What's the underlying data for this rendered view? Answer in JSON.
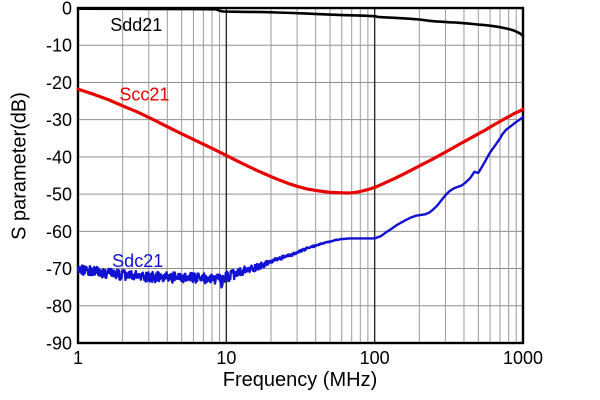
{
  "chart_data": {
    "type": "line",
    "title": "",
    "xlabel": "Frequency (MHz)",
    "ylabel": "S parameter(dB)",
    "x_scale": "log",
    "xlim": [
      1,
      1000
    ],
    "ylim": [
      -90,
      0
    ],
    "grid": true,
    "legend_position": "inline-annotations",
    "x_ticks": [
      {
        "value": 1,
        "label": "1"
      },
      {
        "value": 10,
        "label": "10"
      },
      {
        "value": 100,
        "label": "100"
      },
      {
        "value": 1000,
        "label": "1000"
      }
    ],
    "y_ticks": [
      {
        "value": 0,
        "label": "0"
      },
      {
        "value": -10,
        "label": "-10"
      },
      {
        "value": -20,
        "label": "-20"
      },
      {
        "value": -30,
        "label": "-30"
      },
      {
        "value": -40,
        "label": "-40"
      },
      {
        "value": -50,
        "label": "-50"
      },
      {
        "value": -60,
        "label": "-60"
      },
      {
        "value": -70,
        "label": "-70"
      },
      {
        "value": -80,
        "label": "-80"
      },
      {
        "value": -90,
        "label": "-90"
      }
    ],
    "colors": {
      "grid_minor": "#9a9a9a",
      "grid_major": "#2b2b2b",
      "grid_horizontal": "#8f8f8f",
      "border": "#000000",
      "background": "#ffffff"
    },
    "series": [
      {
        "name": "Sdd21",
        "color": "#000000",
        "stroke_width": 2.6,
        "points": [
          [
            1,
            -0.2
          ],
          [
            3,
            -0.25
          ],
          [
            6,
            -0.3
          ],
          [
            8.5,
            -0.35
          ],
          [
            9,
            -0.7
          ],
          [
            9.5,
            -0.95
          ],
          [
            11,
            -1.0
          ],
          [
            14,
            -1.05
          ],
          [
            18,
            -1.1
          ],
          [
            22,
            -1.2
          ],
          [
            28,
            -1.35
          ],
          [
            35,
            -1.5
          ],
          [
            45,
            -1.7
          ],
          [
            60,
            -1.9
          ],
          [
            80,
            -2.05
          ],
          [
            100,
            -2.2
          ],
          [
            105,
            -2.4
          ],
          [
            115,
            -2.5
          ],
          [
            130,
            -2.6
          ],
          [
            150,
            -2.75
          ],
          [
            175,
            -2.9
          ],
          [
            200,
            -3.1
          ],
          [
            230,
            -3.4
          ],
          [
            260,
            -3.6
          ],
          [
            290,
            -3.7
          ],
          [
            320,
            -3.85
          ],
          [
            350,
            -3.9
          ],
          [
            380,
            -4.0
          ],
          [
            420,
            -4.15
          ],
          [
            460,
            -4.3
          ],
          [
            500,
            -4.45
          ],
          [
            550,
            -4.6
          ],
          [
            600,
            -4.75
          ],
          [
            650,
            -4.95
          ],
          [
            700,
            -5.15
          ],
          [
            750,
            -5.4
          ],
          [
            800,
            -5.65
          ],
          [
            850,
            -5.95
          ],
          [
            900,
            -6.35
          ],
          [
            940,
            -6.7
          ],
          [
            970,
            -7.0
          ],
          [
            1000,
            -7.5
          ]
        ]
      },
      {
        "name": "Scc21",
        "color": "#e80000",
        "stroke_width": 3.2,
        "points": [
          [
            1,
            -21.8
          ],
          [
            1.3,
            -23.3
          ],
          [
            1.6,
            -24.6
          ],
          [
            2,
            -26.3
          ],
          [
            2.5,
            -27.9
          ],
          [
            3,
            -29.4
          ],
          [
            3.5,
            -30.7
          ],
          [
            4,
            -31.9
          ],
          [
            5,
            -33.8
          ],
          [
            6,
            -35.3
          ],
          [
            7,
            -36.6
          ],
          [
            8,
            -37.7
          ],
          [
            9,
            -38.7
          ],
          [
            10,
            -39.6
          ],
          [
            12,
            -41.2
          ],
          [
            14,
            -42.5
          ],
          [
            16,
            -43.6
          ],
          [
            18,
            -44.5
          ],
          [
            20,
            -45.3
          ],
          [
            23,
            -46.3
          ],
          [
            26,
            -47.1
          ],
          [
            30,
            -47.9
          ],
          [
            35,
            -48.6
          ],
          [
            40,
            -49.0
          ],
          [
            45,
            -49.3
          ],
          [
            50,
            -49.5
          ],
          [
            55,
            -49.6
          ],
          [
            60,
            -49.65
          ],
          [
            65,
            -49.7
          ],
          [
            70,
            -49.65
          ],
          [
            75,
            -49.5
          ],
          [
            80,
            -49.3
          ],
          [
            90,
            -48.8
          ],
          [
            100,
            -48.2
          ],
          [
            110,
            -47.5
          ],
          [
            120,
            -46.8
          ],
          [
            135,
            -45.9
          ],
          [
            150,
            -45.0
          ],
          [
            170,
            -43.9
          ],
          [
            190,
            -42.9
          ],
          [
            210,
            -42.0
          ],
          [
            240,
            -40.8
          ],
          [
            270,
            -39.7
          ],
          [
            300,
            -38.7
          ],
          [
            340,
            -37.5
          ],
          [
            380,
            -36.4
          ],
          [
            420,
            -35.5
          ],
          [
            460,
            -34.6
          ],
          [
            500,
            -33.8
          ],
          [
            550,
            -32.9
          ],
          [
            600,
            -32.0
          ],
          [
            650,
            -31.2
          ],
          [
            700,
            -30.5
          ],
          [
            750,
            -29.8
          ],
          [
            800,
            -29.2
          ],
          [
            850,
            -28.6
          ],
          [
            900,
            -28.1
          ],
          [
            950,
            -27.7
          ],
          [
            1000,
            -27.2
          ]
        ]
      },
      {
        "name": "Sdc21",
        "color": "#1111d2",
        "stroke_width": 2.4,
        "points": [
          [
            1,
            -70.0
          ],
          [
            1.5,
            -71.3
          ],
          [
            2,
            -71.8
          ],
          [
            3,
            -72.2
          ],
          [
            4,
            -72.4
          ],
          [
            5,
            -72.5
          ],
          [
            6,
            -72.6
          ],
          [
            7,
            -72.6
          ],
          [
            8,
            -72.8
          ],
          [
            9,
            -73.0
          ],
          [
            9.2,
            -73.2
          ],
          [
            9.3,
            -75.6
          ],
          [
            9.45,
            -73.0
          ],
          [
            10,
            -72.3
          ],
          [
            11,
            -71.8
          ],
          [
            12,
            -71.3
          ],
          [
            13,
            -70.8
          ],
          [
            14,
            -70.3
          ],
          [
            16,
            -69.6
          ],
          [
            18,
            -68.9
          ],
          [
            20,
            -68.1
          ],
          [
            22,
            -67.5
          ],
          [
            25,
            -66.8
          ],
          [
            28,
            -66.2
          ],
          [
            31,
            -65.5
          ],
          [
            35,
            -64.6
          ],
          [
            40,
            -63.8
          ],
          [
            45,
            -63.2
          ],
          [
            50,
            -62.8
          ],
          [
            55,
            -62.3
          ],
          [
            60,
            -62.1
          ],
          [
            68,
            -61.9
          ],
          [
            80,
            -61.9
          ],
          [
            90,
            -61.9
          ],
          [
            100,
            -61.9
          ],
          [
            110,
            -61.3
          ],
          [
            120,
            -60.2
          ],
          [
            130,
            -59.3
          ],
          [
            140,
            -58.4
          ],
          [
            150,
            -57.7
          ],
          [
            160,
            -57.1
          ],
          [
            175,
            -56.3
          ],
          [
            190,
            -55.8
          ],
          [
            205,
            -55.6
          ],
          [
            220,
            -55.4
          ],
          [
            235,
            -54.9
          ],
          [
            250,
            -54.0
          ],
          [
            265,
            -53.0
          ],
          [
            280,
            -51.8
          ],
          [
            300,
            -50.3
          ],
          [
            320,
            -49.2
          ],
          [
            340,
            -48.5
          ],
          [
            360,
            -48.1
          ],
          [
            385,
            -47.7
          ],
          [
            410,
            -46.9
          ],
          [
            440,
            -45.7
          ],
          [
            470,
            -44.0
          ],
          [
            500,
            -44.3
          ],
          [
            550,
            -41.5
          ],
          [
            600,
            -38.8
          ],
          [
            650,
            -36.9
          ],
          [
            700,
            -35.0
          ],
          [
            730,
            -33.8
          ],
          [
            770,
            -32.7
          ],
          [
            800,
            -32.2
          ],
          [
            850,
            -31.4
          ],
          [
            900,
            -30.6
          ],
          [
            950,
            -30.0
          ],
          [
            1000,
            -29.3
          ]
        ],
        "noise": {
          "seed": 9,
          "amplitude_profile": [
            [
              1,
              1.4
            ],
            [
              12,
              1.4
            ],
            [
              20,
              0.5
            ],
            [
              45,
              0.15
            ],
            [
              70,
              0
            ]
          ]
        }
      }
    ],
    "annotations": [
      {
        "text": "Sdd21",
        "color": "#000000",
        "x": 1.65,
        "y": -1.6
      },
      {
        "text": "Scc21",
        "color": "#e80000",
        "x": 1.9,
        "y": -20.3
      },
      {
        "text": "Sdc21",
        "color": "#1111d2",
        "x": 1.7,
        "y": -65.0
      }
    ]
  }
}
